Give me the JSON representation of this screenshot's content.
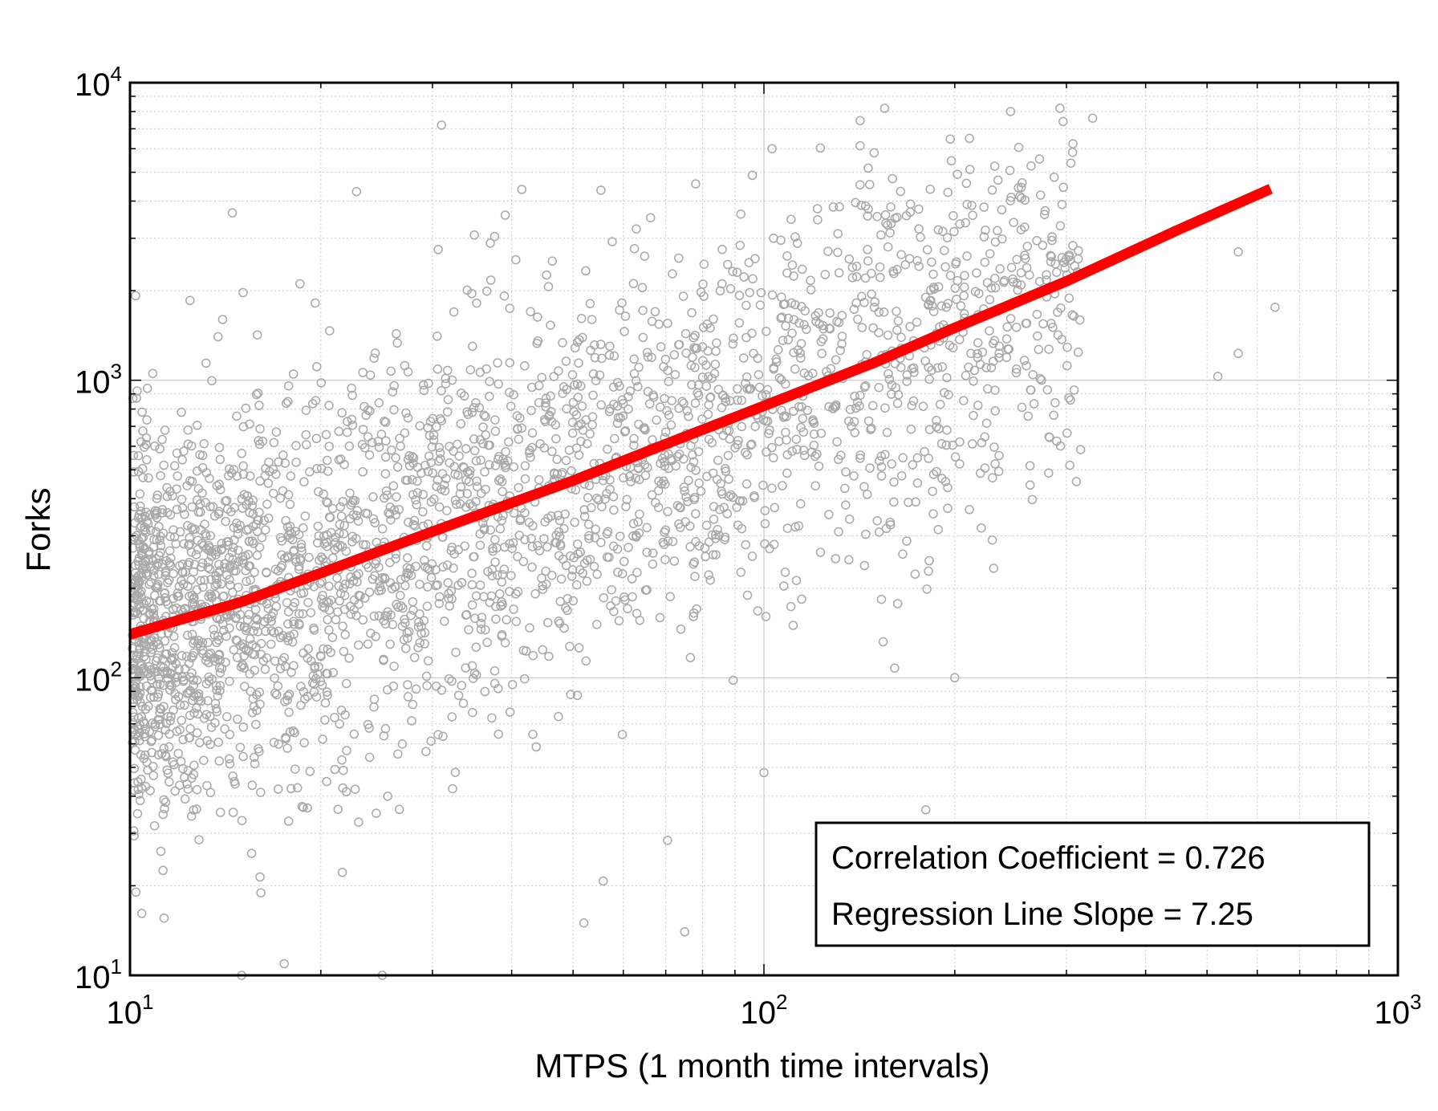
{
  "chart_data": {
    "type": "scatter",
    "xlabel": "MTPS (1 month time intervals)",
    "ylabel": "Forks",
    "xscale": "log",
    "yscale": "log",
    "xlim": [
      10,
      1000
    ],
    "ylim": [
      10,
      10000
    ],
    "x_ticks": [
      {
        "base": "10",
        "exp": "1",
        "value": 10
      },
      {
        "base": "10",
        "exp": "2",
        "value": 100
      },
      {
        "base": "10",
        "exp": "3",
        "value": 1000
      }
    ],
    "y_ticks": [
      {
        "base": "10",
        "exp": "1",
        "value": 10
      },
      {
        "base": "10",
        "exp": "2",
        "value": 100
      },
      {
        "base": "10",
        "exp": "3",
        "value": 1000
      },
      {
        "base": "10",
        "exp": "4",
        "value": 10000
      }
    ],
    "grid": true,
    "colors": {
      "points": "#a8a8a8",
      "regression": "#ff0000",
      "grid": "#c8c8c8"
    },
    "regression_line": {
      "x": [
        10,
        15,
        20,
        30,
        50,
        70,
        100,
        150,
        200,
        300,
        450,
        630
      ],
      "y": [
        140,
        180,
        225,
        310,
        460,
        610,
        820,
        1150,
        1500,
        2150,
        3200,
        4400
      ]
    },
    "scatter_distribution": {
      "anchors_x": [
        10,
        20,
        40,
        100,
        200,
        400,
        630
      ],
      "anchors_y": [
        140,
        225,
        380,
        820,
        1500,
        2900,
        4400
      ],
      "n_points": 3000
    },
    "outliers": [
      {
        "x": 31,
        "y": 7200
      },
      {
        "x": 14.5,
        "y": 3650
      },
      {
        "x": 14,
        "y": 1600
      },
      {
        "x": 155,
        "y": 8200
      },
      {
        "x": 103,
        "y": 6000
      },
      {
        "x": 330,
        "y": 7600
      },
      {
        "x": 245,
        "y": 8000
      },
      {
        "x": 560,
        "y": 2700
      },
      {
        "x": 640,
        "y": 1760
      },
      {
        "x": 560,
        "y": 1230
      },
      {
        "x": 520,
        "y": 1030
      },
      {
        "x": 100,
        "y": 48
      },
      {
        "x": 75,
        "y": 14
      },
      {
        "x": 52,
        "y": 15
      },
      {
        "x": 25,
        "y": 10
      },
      {
        "x": 15,
        "y": 10
      },
      {
        "x": 200,
        "y": 100
      },
      {
        "x": 180,
        "y": 36
      }
    ],
    "annotation": [
      "Correlation Coefficient = 0.726",
      "Regression Line Slope = 7.25"
    ]
  }
}
